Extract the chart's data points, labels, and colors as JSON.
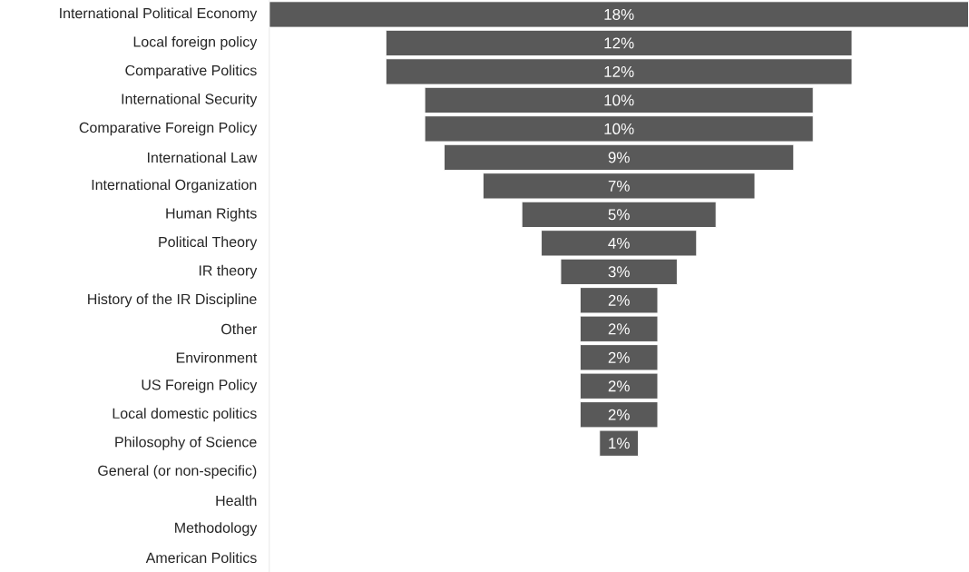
{
  "chart_data": {
    "type": "other",
    "color": "#595959",
    "categories": [
      "International Political Economy",
      "Local foreign policy",
      "Comparative Politics",
      "International Security",
      "Comparative Foreign Policy",
      "International Law",
      "International Organization",
      "Human Rights",
      "Political Theory",
      "IR theory",
      "History of the IR Discipline",
      "Other",
      "Environment",
      "US Foreign Policy",
      "Local domestic politics",
      "Philosophy of Science",
      "General (or non-specific)",
      "Health",
      "Methodology",
      "American Politics"
    ],
    "values": [
      18,
      12,
      12,
      10,
      10,
      9,
      7,
      5,
      4,
      3,
      2,
      2,
      2,
      2,
      2,
      1,
      null,
      null,
      null,
      null
    ],
    "value_labels": [
      "18%",
      "12%",
      "12%",
      "10%",
      "10%",
      "9%",
      "7%",
      "5%",
      "4%",
      "3%",
      "2%",
      "2%",
      "2%",
      "2%",
      "2%",
      "1%",
      null,
      null,
      null,
      null
    ]
  }
}
